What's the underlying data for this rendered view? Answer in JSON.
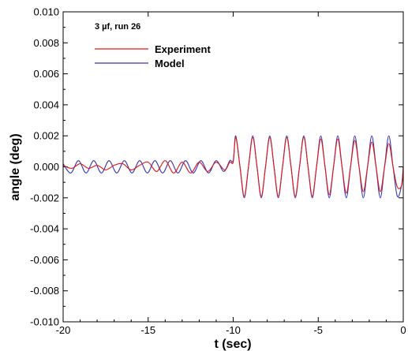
{
  "chart_data": {
    "type": "line",
    "title": "",
    "xlabel": "t (sec)",
    "ylabel": "angle (deg)",
    "xlim": [
      -20,
      0
    ],
    "ylim": [
      -0.01,
      0.01
    ],
    "x_ticks": [
      -20,
      -15,
      -10,
      -5,
      0
    ],
    "x_tick_labels": [
      "-20",
      "-15",
      "-10",
      "-5",
      "0"
    ],
    "y_ticks": [
      -0.01,
      -0.008,
      -0.006,
      -0.004,
      -0.002,
      0,
      0.002,
      0.004,
      0.006,
      0.008,
      0.01
    ],
    "y_tick_labels": [
      "-0.010",
      "-0.008",
      "-0.006",
      "-0.004",
      "-0.002",
      "0.000",
      "0.002",
      "0.004",
      "0.006",
      "0.008",
      "0.010"
    ],
    "grid": false,
    "legend_placement": "top-left",
    "annotation": "3 µf, run 26",
    "series": [
      {
        "name": "Experiment",
        "color": "#e01818",
        "x": [
          -20,
          -19.5,
          -19,
          -18.5,
          -18,
          -17.5,
          -17,
          -16.5,
          -16,
          -15.5,
          -15,
          -14.5,
          -14,
          -13.5,
          -13,
          -12.5,
          -12,
          -11.5,
          -11,
          -10.5,
          -10.2,
          -10.0,
          -9.85,
          -9.6,
          -9.35,
          -9.1,
          -8.85,
          -8.6,
          -8.35,
          -8.1,
          -7.85,
          -7.6,
          -7.35,
          -7.1,
          -6.85,
          -6.6,
          -6.35,
          -6.1,
          -5.85,
          -5.6,
          -5.35,
          -5.1,
          -4.85,
          -4.6,
          -4.35,
          -4.1,
          -3.85,
          -3.6,
          -3.35,
          -3.1,
          -2.85,
          -2.6,
          -2.35,
          -2.1,
          -1.85,
          -1.6,
          -1.35,
          -1.1,
          -0.85,
          -0.6,
          -0.35,
          -0.1,
          0
        ],
        "y": [
          0.0001,
          -0.0001,
          0.0002,
          -0.0001,
          0.0001,
          -0.0002,
          0.0001,
          0.0002,
          -0.0002,
          0.0001,
          0.0003,
          -0.0003,
          0.0004,
          -0.0004,
          0.0003,
          -0.0004,
          0.0003,
          -0.0003,
          0.0003,
          -0.0002,
          0.0003,
          0.0003,
          0.0019,
          0.0,
          -0.0019,
          0.0,
          0.0019,
          0.0,
          -0.0019,
          0.0,
          0.0019,
          0.0,
          -0.0019,
          0.0,
          0.0019,
          0.0,
          -0.0019,
          0.0,
          0.0019,
          0.0,
          -0.0019,
          0.0,
          0.0018,
          0.0,
          -0.0018,
          0.0,
          0.0018,
          0.0,
          -0.0017,
          0.0,
          0.0017,
          0.0,
          -0.0016,
          0.0,
          0.0016,
          0.0,
          -0.0016,
          0.0,
          0.0015,
          0.0,
          -0.0013,
          -0.0012,
          0.0
        ]
      },
      {
        "name": "Model",
        "color": "#3838b8",
        "x": [
          -20,
          -19.55,
          -19.1,
          -18.65,
          -18.2,
          -17.75,
          -17.3,
          -16.85,
          -16.4,
          -15.95,
          -15.5,
          -15.05,
          -14.6,
          -14.15,
          -13.7,
          -13.25,
          -12.8,
          -12.35,
          -11.9,
          -11.45,
          -11.0,
          -10.55,
          -10.2,
          -10.0,
          -9.85,
          -9.6,
          -9.35,
          -9.1,
          -8.85,
          -8.6,
          -8.35,
          -8.1,
          -7.85,
          -7.6,
          -7.35,
          -7.1,
          -6.85,
          -6.6,
          -6.35,
          -6.1,
          -5.85,
          -5.6,
          -5.35,
          -5.1,
          -4.85,
          -4.6,
          -4.35,
          -4.1,
          -3.85,
          -3.6,
          -3.35,
          -3.1,
          -2.85,
          -2.6,
          -2.35,
          -2.1,
          -1.85,
          -1.6,
          -1.35,
          -1.1,
          -0.85,
          -0.6,
          -0.35,
          -0.1,
          0
        ],
        "y": [
          0.0002,
          -0.0004,
          0.0004,
          -0.0004,
          0.0004,
          -0.0004,
          0.0004,
          -0.0004,
          0.0004,
          -0.0004,
          0.0004,
          -0.0004,
          0.0004,
          -0.0004,
          0.0004,
          -0.0004,
          0.0004,
          -0.0004,
          0.0004,
          -0.0004,
          0.0004,
          -0.0003,
          0.0004,
          0.0004,
          0.002,
          0.0,
          -0.002,
          0.0,
          0.002,
          0.0,
          -0.002,
          0.0,
          0.002,
          0.0,
          -0.002,
          0.0,
          0.002,
          0.0,
          -0.002,
          0.0,
          0.002,
          0.0,
          -0.002,
          0.0,
          0.002,
          0.0,
          -0.002,
          0.0,
          0.002,
          0.0,
          -0.002,
          0.0,
          0.002,
          0.0,
          -0.002,
          0.0,
          0.002,
          0.0,
          -0.002,
          0.0,
          0.002,
          0.0,
          -0.0019,
          -0.0012,
          0.0
        ]
      }
    ]
  }
}
